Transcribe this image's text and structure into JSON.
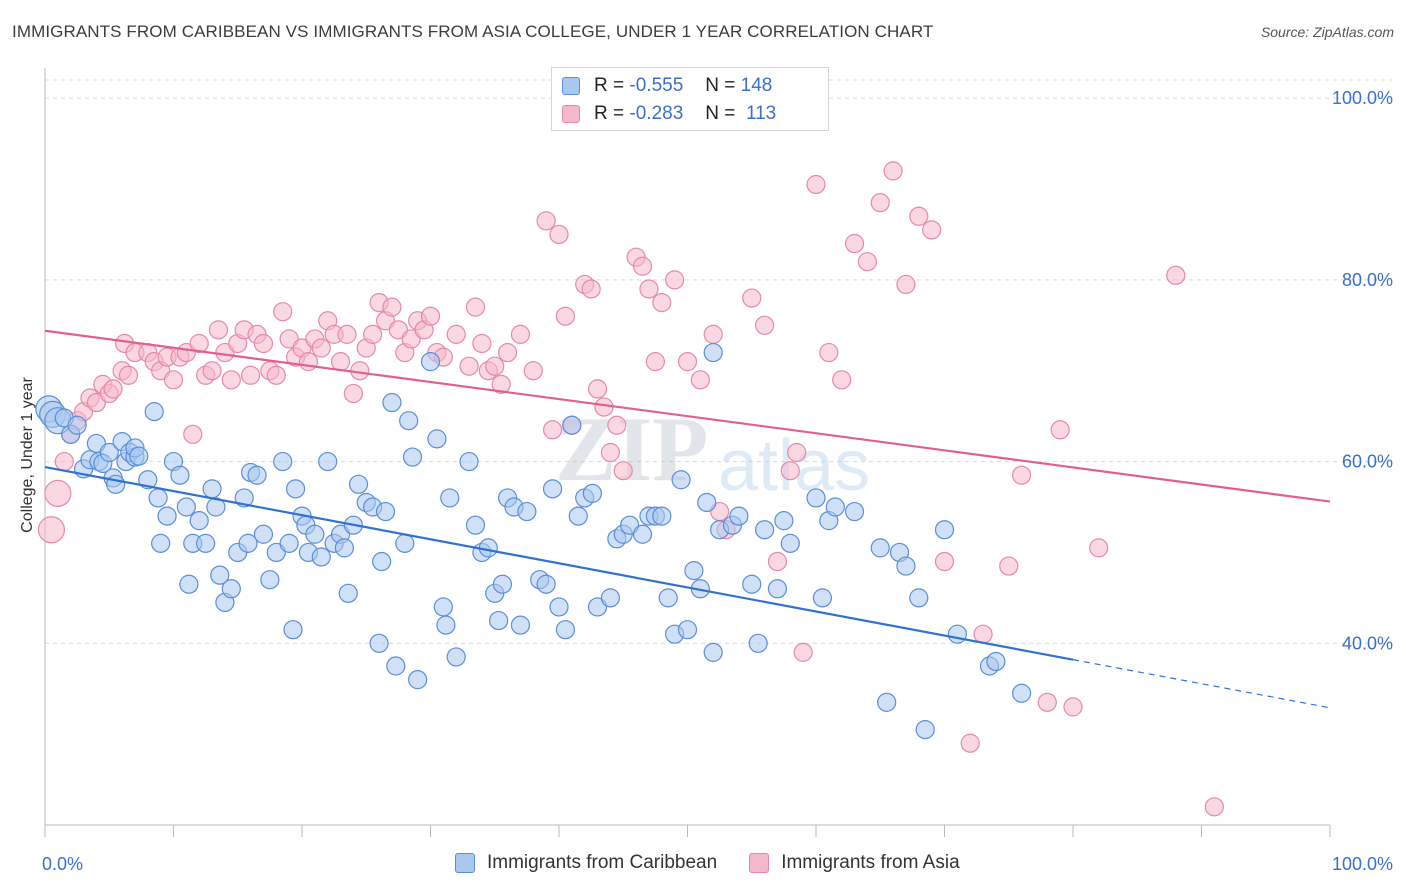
{
  "header": {
    "title": "IMMIGRANTS FROM CARIBBEAN VS IMMIGRANTS FROM ASIA COLLEGE, UNDER 1 YEAR CORRELATION CHART",
    "source": "Source: ZipAtlas.com"
  },
  "watermark": {
    "zip": "ZIP",
    "atlas": "atlas"
  },
  "legend": {
    "rows": [
      {
        "r_label": "R =",
        "r_value": "-0.555",
        "n_label": "N =",
        "n_value": "148"
      },
      {
        "r_label": "R =",
        "r_value": "-0.283",
        "n_label": "N =",
        "n_value": "113"
      }
    ]
  },
  "colors": {
    "caribbean_fill": "#a9c8f0",
    "caribbean_stroke": "#5a8ed8",
    "caribbean_line": "#2f72d0",
    "asia_fill": "#f5b8cb",
    "asia_stroke": "#e689a8",
    "asia_line": "#e0608c",
    "axis_text": "#3a6fcf"
  },
  "chart_data": {
    "type": "scatter",
    "title": "IMMIGRANTS FROM CARIBBEAN VS IMMIGRANTS FROM ASIA COLLEGE, UNDER 1 YEAR CORRELATION CHART",
    "xlabel": "",
    "ylabel": "College, Under 1 year",
    "xlim": [
      0,
      100
    ],
    "ylim": [
      20,
      102
    ],
    "x_ticks": [
      "0.0%",
      "100.0%"
    ],
    "y_ticks": [
      {
        "value": 40,
        "label": "40.0%"
      },
      {
        "value": 60,
        "label": "60.0%"
      },
      {
        "value": 80,
        "label": "80.0%"
      },
      {
        "value": 100,
        "label": "100.0%"
      }
    ],
    "grid": true,
    "legend_position": "top-center",
    "series": [
      {
        "name": "Immigrants from Caribbean",
        "r": -0.555,
        "n": 148,
        "trend": {
          "x0": 0,
          "y0": 59.4,
          "x1": 80,
          "y1": 38.2,
          "dash_to_x": 100,
          "dash_to_y": 32.9
        },
        "points": [
          [
            0.3,
            65.8
          ],
          [
            0.6,
            65.2
          ],
          [
            1,
            64.5
          ],
          [
            1.5,
            64.8
          ],
          [
            2,
            63
          ],
          [
            2.5,
            64
          ],
          [
            3,
            59.2
          ],
          [
            3.5,
            60.2
          ],
          [
            4,
            62
          ],
          [
            4.2,
            60
          ],
          [
            4.5,
            59.8
          ],
          [
            5,
            61
          ],
          [
            5.3,
            58.2
          ],
          [
            5.5,
            57.5
          ],
          [
            6,
            62.2
          ],
          [
            6.3,
            60
          ],
          [
            6.6,
            61
          ],
          [
            7,
            60.5
          ],
          [
            7,
            61.5
          ],
          [
            7.3,
            60.6
          ],
          [
            8,
            58
          ],
          [
            8.5,
            65.5
          ],
          [
            8.8,
            56
          ],
          [
            9,
            51
          ],
          [
            9.5,
            54
          ],
          [
            10,
            60
          ],
          [
            10.5,
            58.5
          ],
          [
            11,
            55
          ],
          [
            11.2,
            46.5
          ],
          [
            11.5,
            51
          ],
          [
            12,
            53.5
          ],
          [
            12.5,
            51
          ],
          [
            13,
            57
          ],
          [
            13.3,
            55
          ],
          [
            13.6,
            47.5
          ],
          [
            14,
            44.5
          ],
          [
            14.5,
            46
          ],
          [
            15,
            50
          ],
          [
            15.5,
            56
          ],
          [
            15.8,
            51
          ],
          [
            16,
            58.8
          ],
          [
            16.5,
            58.5
          ],
          [
            17,
            52
          ],
          [
            17.5,
            47
          ],
          [
            18,
            50
          ],
          [
            18.5,
            60
          ],
          [
            19,
            51
          ],
          [
            19.3,
            41.5
          ],
          [
            19.5,
            57
          ],
          [
            20,
            54
          ],
          [
            20.3,
            53
          ],
          [
            20.5,
            50
          ],
          [
            21,
            52
          ],
          [
            21.5,
            49.5
          ],
          [
            22,
            60
          ],
          [
            22.5,
            51
          ],
          [
            23,
            52
          ],
          [
            23.3,
            50.5
          ],
          [
            23.6,
            45.5
          ],
          [
            24,
            53
          ],
          [
            24.4,
            57.5
          ],
          [
            25,
            55.5
          ],
          [
            25.5,
            55
          ],
          [
            26,
            40
          ],
          [
            26.2,
            49
          ],
          [
            26.5,
            54.5
          ],
          [
            27,
            66.5
          ],
          [
            27.3,
            37.5
          ],
          [
            28,
            51
          ],
          [
            28.3,
            64.5
          ],
          [
            28.6,
            60.5
          ],
          [
            29,
            36
          ],
          [
            30,
            71
          ],
          [
            30.5,
            62.5
          ],
          [
            31,
            44
          ],
          [
            31.2,
            42
          ],
          [
            31.5,
            56
          ],
          [
            32,
            38.5
          ],
          [
            33,
            60
          ],
          [
            33.5,
            53
          ],
          [
            34,
            50
          ],
          [
            34.5,
            50.5
          ],
          [
            35,
            45.5
          ],
          [
            35.3,
            42.5
          ],
          [
            35.6,
            46.5
          ],
          [
            36,
            56
          ],
          [
            36.5,
            55
          ],
          [
            37,
            42
          ],
          [
            37.5,
            54.5
          ],
          [
            38.5,
            47
          ],
          [
            39,
            46.5
          ],
          [
            39.5,
            57
          ],
          [
            40,
            44
          ],
          [
            40.5,
            41.5
          ],
          [
            41,
            64
          ],
          [
            41.5,
            54
          ],
          [
            42,
            56
          ],
          [
            42.6,
            56.5
          ],
          [
            43,
            44
          ],
          [
            44,
            45
          ],
          [
            44.5,
            51.5
          ],
          [
            45,
            52
          ],
          [
            45.5,
            53
          ],
          [
            46.5,
            52
          ],
          [
            47,
            54
          ],
          [
            47.5,
            54
          ],
          [
            48,
            54
          ],
          [
            48.5,
            45
          ],
          [
            49,
            41
          ],
          [
            49.5,
            58
          ],
          [
            50,
            41.5
          ],
          [
            50.5,
            48
          ],
          [
            51,
            46
          ],
          [
            51.5,
            55.5
          ],
          [
            52,
            72
          ],
          [
            52,
            39
          ],
          [
            52.5,
            52.5
          ],
          [
            53.5,
            53
          ],
          [
            54,
            54
          ],
          [
            55,
            46.5
          ],
          [
            55.5,
            40
          ],
          [
            56,
            52.5
          ],
          [
            57,
            46
          ],
          [
            57.5,
            53.5
          ],
          [
            58,
            51
          ],
          [
            60,
            56
          ],
          [
            60.5,
            45
          ],
          [
            61,
            53.5
          ],
          [
            61.5,
            55
          ],
          [
            63,
            54.5
          ],
          [
            65,
            50.5
          ],
          [
            65.5,
            33.5
          ],
          [
            66.5,
            50
          ],
          [
            67,
            48.5
          ],
          [
            68,
            45
          ],
          [
            68.5,
            30.5
          ],
          [
            70,
            52.5
          ],
          [
            71,
            41
          ],
          [
            73.5,
            37.5
          ],
          [
            74,
            38
          ],
          [
            76,
            34.5
          ]
        ]
      },
      {
        "name": "Immigrants from Asia",
        "r": -0.283,
        "n": 113,
        "trend": {
          "x0": 0,
          "y0": 74.4,
          "x1": 100,
          "y1": 55.6
        },
        "points": [
          [
            0.5,
            52.5
          ],
          [
            1,
            56.5
          ],
          [
            1.5,
            60
          ],
          [
            2,
            63
          ],
          [
            2.5,
            64.5
          ],
          [
            3,
            65.5
          ],
          [
            3.5,
            67
          ],
          [
            4,
            66.5
          ],
          [
            4.5,
            68.5
          ],
          [
            5,
            67.5
          ],
          [
            5.3,
            68
          ],
          [
            6,
            70
          ],
          [
            6.2,
            73
          ],
          [
            6.5,
            69.5
          ],
          [
            7,
            72
          ],
          [
            8,
            72
          ],
          [
            8.5,
            71
          ],
          [
            9,
            70
          ],
          [
            9.5,
            71.5
          ],
          [
            10,
            69
          ],
          [
            10.5,
            71.5
          ],
          [
            11,
            72
          ],
          [
            11.5,
            63
          ],
          [
            12,
            73
          ],
          [
            12.5,
            69.5
          ],
          [
            13,
            70
          ],
          [
            13.5,
            74.5
          ],
          [
            14,
            72
          ],
          [
            14.5,
            69
          ],
          [
            15,
            73
          ],
          [
            15.5,
            74.5
          ],
          [
            16,
            69.5
          ],
          [
            16.5,
            74
          ],
          [
            17,
            73
          ],
          [
            17.5,
            70
          ],
          [
            18,
            69.5
          ],
          [
            18.5,
            76.5
          ],
          [
            19,
            73.5
          ],
          [
            19.5,
            71.5
          ],
          [
            20,
            72.5
          ],
          [
            20.5,
            71
          ],
          [
            21,
            73.5
          ],
          [
            21.5,
            72.5
          ],
          [
            22,
            75.5
          ],
          [
            22.5,
            74
          ],
          [
            23,
            71
          ],
          [
            23.5,
            74
          ],
          [
            24,
            67.5
          ],
          [
            24.5,
            70
          ],
          [
            25,
            72.5
          ],
          [
            25.5,
            74
          ],
          [
            26,
            77.5
          ],
          [
            26.5,
            75.5
          ],
          [
            27,
            77
          ],
          [
            27.5,
            74.5
          ],
          [
            28,
            72
          ],
          [
            28.5,
            73.5
          ],
          [
            29,
            75.5
          ],
          [
            29.5,
            74.5
          ],
          [
            30,
            76
          ],
          [
            30.5,
            72
          ],
          [
            31,
            71.5
          ],
          [
            32,
            74
          ],
          [
            33,
            70.5
          ],
          [
            33.5,
            77
          ],
          [
            34,
            73
          ],
          [
            34.5,
            70
          ],
          [
            35,
            70.5
          ],
          [
            35.5,
            68.5
          ],
          [
            36,
            72
          ],
          [
            37,
            74
          ],
          [
            38,
            70
          ],
          [
            39,
            86.5
          ],
          [
            39.5,
            63.5
          ],
          [
            40,
            85
          ],
          [
            40.5,
            76
          ],
          [
            41,
            64
          ],
          [
            42,
            79.5
          ],
          [
            42.5,
            79
          ],
          [
            43,
            68
          ],
          [
            43.5,
            66
          ],
          [
            44,
            61
          ],
          [
            44.5,
            64
          ],
          [
            45,
            59
          ],
          [
            46,
            82.5
          ],
          [
            46.5,
            81.5
          ],
          [
            47,
            79
          ],
          [
            47.5,
            71
          ],
          [
            48,
            77.5
          ],
          [
            49,
            80
          ],
          [
            50,
            71
          ],
          [
            51,
            69
          ],
          [
            52,
            74
          ],
          [
            52.5,
            54.5
          ],
          [
            53,
            52.5
          ],
          [
            55,
            78
          ],
          [
            56,
            75
          ],
          [
            57,
            49
          ],
          [
            58,
            59
          ],
          [
            58.5,
            61
          ],
          [
            59,
            39
          ],
          [
            60,
            90.5
          ],
          [
            61,
            72
          ],
          [
            62,
            69
          ],
          [
            63,
            84
          ],
          [
            64,
            82
          ],
          [
            65,
            88.5
          ],
          [
            66,
            92
          ],
          [
            67,
            79.5
          ],
          [
            68,
            87
          ],
          [
            69,
            85.5
          ],
          [
            70,
            49
          ],
          [
            72,
            29
          ],
          [
            73,
            41
          ],
          [
            75,
            48.5
          ],
          [
            76,
            58.5
          ],
          [
            78,
            33.5
          ],
          [
            79,
            63.5
          ],
          [
            80,
            33
          ],
          [
            82,
            50.5
          ],
          [
            88,
            80.5
          ],
          [
            91,
            22
          ]
        ]
      }
    ]
  }
}
